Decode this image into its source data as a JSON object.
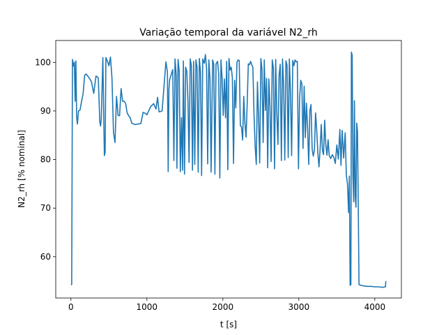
{
  "chart_data": {
    "type": "line",
    "title": "Variação temporal da variável N2_rh",
    "xlabel": "t [s]",
    "ylabel": "N2_rh [% nominal]",
    "xlim": [
      -200,
      4350
    ],
    "ylim": [
      51.5,
      104.5
    ],
    "x_ticks": [
      0,
      1000,
      2000,
      3000,
      4000
    ],
    "y_ticks": [
      60,
      70,
      80,
      90,
      100
    ],
    "grid": false,
    "series": [
      {
        "color": "#1f77b4",
        "points": [
          [
            0,
            54.2
          ],
          [
            10,
            54.3
          ],
          [
            20,
            100.6
          ],
          [
            35,
            99.2
          ],
          [
            45,
            100.0
          ],
          [
            55,
            92.0
          ],
          [
            65,
            100.3
          ],
          [
            75,
            88.7
          ],
          [
            85,
            87.3
          ],
          [
            100,
            90.0
          ],
          [
            120,
            90.2
          ],
          [
            140,
            92.0
          ],
          [
            160,
            93.5
          ],
          [
            180,
            97.3
          ],
          [
            200,
            97.6
          ],
          [
            240,
            96.8
          ],
          [
            270,
            96.0
          ],
          [
            300,
            93.6
          ],
          [
            330,
            97.2
          ],
          [
            360,
            96.8
          ],
          [
            380,
            87.7
          ],
          [
            390,
            86.9
          ],
          [
            400,
            88.5
          ],
          [
            420,
            101.0
          ],
          [
            440,
            80.8
          ],
          [
            450,
            81.5
          ],
          [
            460,
            101.0
          ],
          [
            480,
            100.2
          ],
          [
            500,
            99.3
          ],
          [
            520,
            101.1
          ],
          [
            540,
            96.8
          ],
          [
            560,
            85.6
          ],
          [
            580,
            83.5
          ],
          [
            600,
            93.0
          ],
          [
            620,
            89.1
          ],
          [
            640,
            89.0
          ],
          [
            660,
            94.6
          ],
          [
            680,
            92.0
          ],
          [
            700,
            92.0
          ],
          [
            720,
            91.5
          ],
          [
            740,
            89.6
          ],
          [
            760,
            89.0
          ],
          [
            780,
            88.6
          ],
          [
            800,
            87.5
          ],
          [
            840,
            87.2
          ],
          [
            880,
            87.3
          ],
          [
            920,
            87.4
          ],
          [
            950,
            89.7
          ],
          [
            980,
            89.5
          ],
          [
            1000,
            89.2
          ],
          [
            1050,
            90.9
          ],
          [
            1090,
            91.5
          ],
          [
            1120,
            90.4
          ],
          [
            1140,
            92.8
          ],
          [
            1160,
            89.8
          ],
          [
            1200,
            90.0
          ],
          [
            1250,
            100.1
          ],
          [
            1270,
            98.0
          ],
          [
            1280,
            77.5
          ],
          [
            1290,
            94.5
          ],
          [
            1300,
            96.5
          ],
          [
            1320,
            97.5
          ],
          [
            1340,
            98.5
          ],
          [
            1355,
            79.8
          ],
          [
            1370,
            100.7
          ],
          [
            1385,
            97.5
          ],
          [
            1395,
            78.2
          ],
          [
            1410,
            100.6
          ],
          [
            1425,
            98.2
          ],
          [
            1440,
            77.5
          ],
          [
            1455,
            88.6
          ],
          [
            1470,
            77.8
          ],
          [
            1480,
            100.3
          ],
          [
            1495,
            77.0
          ],
          [
            1510,
            99.0
          ],
          [
            1525,
            98.2
          ],
          [
            1540,
            92.3
          ],
          [
            1555,
            79.4
          ],
          [
            1570,
            100.7
          ],
          [
            1585,
            99.4
          ],
          [
            1600,
            77.8
          ],
          [
            1615,
            100.2
          ],
          [
            1630,
            79.0
          ],
          [
            1645,
            100.5
          ],
          [
            1660,
            99.0
          ],
          [
            1675,
            77.4
          ],
          [
            1690,
            100.8
          ],
          [
            1705,
            98.1
          ],
          [
            1720,
            76.7
          ],
          [
            1735,
            100.7
          ],
          [
            1755,
            99.8
          ],
          [
            1770,
            101.6
          ],
          [
            1785,
            98.8
          ],
          [
            1800,
            79.1
          ],
          [
            1815,
            100.5
          ],
          [
            1830,
            96.7
          ],
          [
            1845,
            77.4
          ],
          [
            1865,
            100.5
          ],
          [
            1880,
            99.6
          ],
          [
            1895,
            77.0
          ],
          [
            1910,
            99.7
          ],
          [
            1930,
            100.2
          ],
          [
            1945,
            97.7
          ],
          [
            1960,
            76.2
          ],
          [
            1975,
            100.5
          ],
          [
            1990,
            96.7
          ],
          [
            2005,
            89.1
          ],
          [
            2020,
            96.6
          ],
          [
            2035,
            88.6
          ],
          [
            2050,
            100.2
          ],
          [
            2065,
            77.9
          ],
          [
            2080,
            100.8
          ],
          [
            2095,
            98.4
          ],
          [
            2110,
            99.0
          ],
          [
            2125,
            96.8
          ],
          [
            2140,
            79.2
          ],
          [
            2155,
            96.3
          ],
          [
            2170,
            90.6
          ],
          [
            2185,
            100.0
          ],
          [
            2200,
            100.5
          ],
          [
            2215,
            100.4
          ],
          [
            2230,
            87.0
          ],
          [
            2245,
            86.7
          ],
          [
            2260,
            84.0
          ],
          [
            2275,
            93.0
          ],
          [
            2290,
            87.5
          ],
          [
            2305,
            84.6
          ],
          [
            2320,
            91.5
          ],
          [
            2335,
            99.7
          ],
          [
            2350,
            99.5
          ],
          [
            2365,
            100.2
          ],
          [
            2380,
            99.5
          ],
          [
            2395,
            99.0
          ],
          [
            2410,
            89.2
          ],
          [
            2425,
            82.7
          ],
          [
            2440,
            79.0
          ],
          [
            2455,
            96.0
          ],
          [
            2470,
            88.5
          ],
          [
            2485,
            79.3
          ],
          [
            2500,
            100.8
          ],
          [
            2515,
            98.6
          ],
          [
            2530,
            83.5
          ],
          [
            2545,
            100.5
          ],
          [
            2560,
            90.1
          ],
          [
            2575,
            96.7
          ],
          [
            2590,
            78.3
          ],
          [
            2605,
            96.6
          ],
          [
            2620,
            90.8
          ],
          [
            2635,
            79.6
          ],
          [
            2650,
            100.5
          ],
          [
            2665,
            98.8
          ],
          [
            2680,
            78.1
          ],
          [
            2695,
            100.6
          ],
          [
            2710,
            89.5
          ],
          [
            2725,
            83.1
          ],
          [
            2740,
            97.3
          ],
          [
            2755,
            99.6
          ],
          [
            2770,
            79.8
          ],
          [
            2785,
            100.7
          ],
          [
            2800,
            95.1
          ],
          [
            2815,
            79.9
          ],
          [
            2830,
            100.3
          ],
          [
            2845,
            99.4
          ],
          [
            2860,
            80.4
          ],
          [
            2875,
            100.7
          ],
          [
            2890,
            93.6
          ],
          [
            2905,
            80.8
          ],
          [
            2920,
            100.4
          ],
          [
            2935,
            99.3
          ],
          [
            2950,
            100.5
          ],
          [
            2965,
            100.1
          ],
          [
            2980,
            100.2
          ],
          [
            2995,
            78.1
          ],
          [
            3010,
            92.6
          ],
          [
            3025,
            96.3
          ],
          [
            3040,
            95.6
          ],
          [
            3055,
            82.3
          ],
          [
            3070,
            95.1
          ],
          [
            3085,
            84.5
          ],
          [
            3100,
            91.6
          ],
          [
            3115,
            86.4
          ],
          [
            3130,
            79.0
          ],
          [
            3145,
            90.0
          ],
          [
            3160,
            91.3
          ],
          [
            3175,
            82.2
          ],
          [
            3190,
            80.7
          ],
          [
            3205,
            82.0
          ],
          [
            3220,
            89.6
          ],
          [
            3235,
            86.1
          ],
          [
            3250,
            81.4
          ],
          [
            3265,
            78.5
          ],
          [
            3280,
            82.2
          ],
          [
            3295,
            87.2
          ],
          [
            3310,
            82.0
          ],
          [
            3325,
            81.0
          ],
          [
            3340,
            88.1
          ],
          [
            3355,
            83.0
          ],
          [
            3370,
            80.9
          ],
          [
            3385,
            84.1
          ],
          [
            3400,
            80.8
          ],
          [
            3420,
            80.2
          ],
          [
            3440,
            81.0
          ],
          [
            3460,
            80.5
          ],
          [
            3480,
            79.2
          ],
          [
            3500,
            83.0
          ],
          [
            3520,
            80.1
          ],
          [
            3540,
            86.2
          ],
          [
            3555,
            78.8
          ],
          [
            3570,
            86.0
          ],
          [
            3590,
            80.3
          ],
          [
            3610,
            85.5
          ],
          [
            3625,
            76.8
          ],
          [
            3640,
            75.0
          ],
          [
            3655,
            69.1
          ],
          [
            3665,
            76.6
          ],
          [
            3675,
            54.1
          ],
          [
            3685,
            54.3
          ],
          [
            3692,
            102.1
          ],
          [
            3702,
            101.5
          ],
          [
            3712,
            76.4
          ],
          [
            3722,
            71.3
          ],
          [
            3732,
            92.1
          ],
          [
            3742,
            72.6
          ],
          [
            3752,
            70.2
          ],
          [
            3762,
            87.5
          ],
          [
            3772,
            85.8
          ],
          [
            3782,
            70.6
          ],
          [
            3792,
            54.3
          ],
          [
            3800,
            54.2
          ],
          [
            3850,
            54.0
          ],
          [
            3900,
            53.9
          ],
          [
            3950,
            53.9
          ],
          [
            4000,
            53.8
          ],
          [
            4050,
            53.8
          ],
          [
            4100,
            53.7
          ],
          [
            4140,
            53.8
          ],
          [
            4145,
            55.0
          ]
        ]
      }
    ]
  }
}
